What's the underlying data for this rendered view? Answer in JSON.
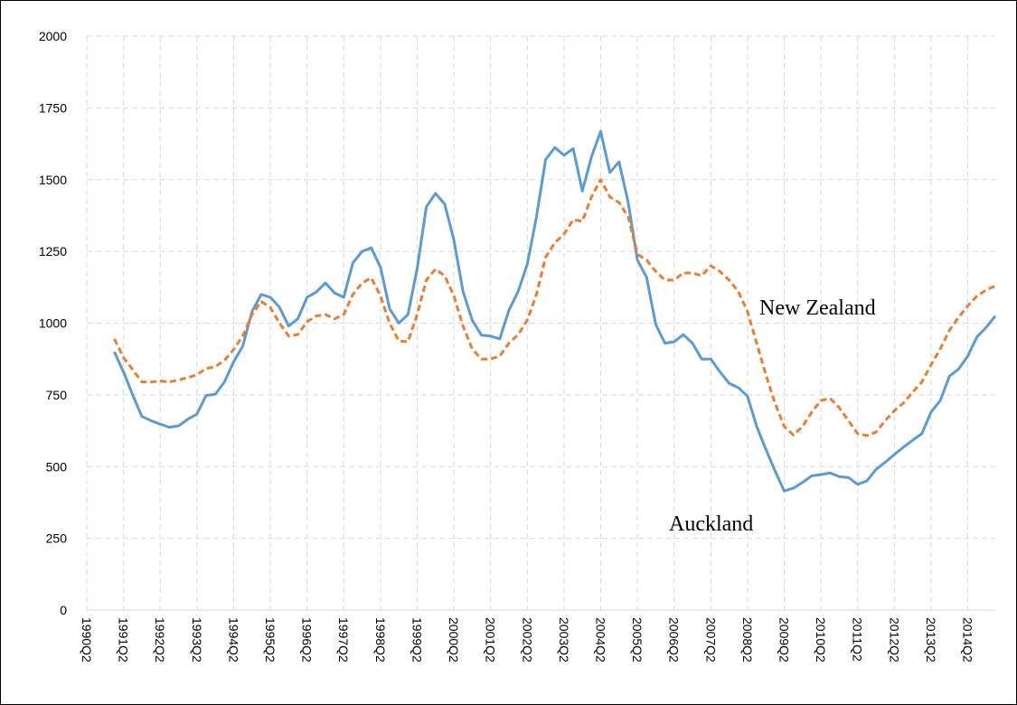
{
  "chart_data": {
    "type": "line",
    "categories": [
      "1990Q2",
      null,
      null,
      null,
      "1991Q2",
      null,
      null,
      null,
      "1992Q2",
      null,
      null,
      null,
      "1993Q2",
      null,
      null,
      null,
      "1994Q2",
      null,
      null,
      null,
      "1995Q2",
      null,
      null,
      null,
      "1996Q2",
      null,
      null,
      null,
      "1997Q2",
      null,
      null,
      null,
      "1998Q2",
      null,
      null,
      null,
      "1999Q2",
      null,
      null,
      null,
      "2000Q2",
      null,
      null,
      null,
      "2001Q2",
      null,
      null,
      null,
      "2002Q2",
      null,
      null,
      null,
      "2003Q2",
      null,
      null,
      null,
      "2004Q2",
      null,
      null,
      null,
      "2005Q2",
      null,
      null,
      null,
      "2006Q2",
      null,
      null,
      null,
      "2007Q2",
      null,
      null,
      null,
      "2008Q2",
      null,
      null,
      null,
      "2009Q2",
      null,
      null,
      null,
      "2010Q2",
      null,
      null,
      null,
      "2011Q2",
      null,
      null,
      null,
      "2012Q2",
      null,
      null,
      null,
      "2013Q2",
      null,
      null,
      null,
      "2014Q2",
      null,
      null,
      null
    ],
    "series": [
      {
        "name": "Auckland",
        "color": "#5b9bd5",
        "dashed": false,
        "values": [
          null,
          null,
          null,
          900,
          830,
          750,
          675,
          660,
          648,
          637,
          642,
          665,
          683,
          748,
          752,
          795,
          865,
          920,
          1040,
          1100,
          1090,
          1055,
          990,
          1015,
          1090,
          1108,
          1140,
          1105,
          1090,
          1210,
          1250,
          1262,
          1195,
          1050,
          1000,
          1030,
          1190,
          1405,
          1452,
          1415,
          1290,
          1110,
          1010,
          958,
          955,
          945,
          1045,
          1110,
          1205,
          1370,
          1570,
          1612,
          1585,
          1608,
          1460,
          1580,
          1668,
          1525,
          1562,
          1420,
          1220,
          1160,
          995,
          930,
          935,
          960,
          930,
          875,
          875,
          830,
          790,
          775,
          745,
          640,
          560,
          485,
          415,
          425,
          445,
          468,
          472,
          478,
          465,
          462,
          438,
          450,
          490,
          515,
          542,
          568,
          592,
          615,
          690,
          730,
          815,
          840,
          885,
          952,
          985,
          1025
        ]
      },
      {
        "name": "New Zealand",
        "color": "#ed7d31",
        "dashed": true,
        "values": [
          null,
          null,
          null,
          945,
          880,
          838,
          795,
          795,
          798,
          795,
          802,
          810,
          820,
          842,
          848,
          870,
          908,
          955,
          1030,
          1075,
          1055,
          1000,
          955,
          960,
          1005,
          1025,
          1030,
          1015,
          1030,
          1100,
          1140,
          1158,
          1095,
          1000,
          938,
          935,
          1030,
          1150,
          1188,
          1165,
          1095,
          990,
          910,
          875,
          875,
          885,
          930,
          960,
          1010,
          1100,
          1230,
          1280,
          1310,
          1360,
          1355,
          1440,
          1500,
          1440,
          1420,
          1370,
          1240,
          1220,
          1180,
          1150,
          1150,
          1175,
          1175,
          1165,
          1200,
          1180,
          1150,
          1110,
          1040,
          930,
          820,
          720,
          640,
          610,
          640,
          690,
          730,
          738,
          705,
          660,
          615,
          608,
          620,
          660,
          695,
          722,
          760,
          795,
          855,
          910,
          975,
          1020,
          1060,
          1095,
          1115,
          1130
        ]
      }
    ],
    "ylim": [
      0,
      2000
    ],
    "yticks": [
      0,
      250,
      500,
      750,
      1000,
      1250,
      1500,
      1750,
      2000
    ],
    "grid": true
  }
}
